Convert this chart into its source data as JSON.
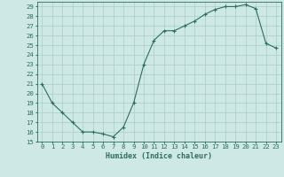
{
  "x": [
    0,
    1,
    2,
    3,
    4,
    5,
    6,
    7,
    8,
    9,
    10,
    11,
    12,
    13,
    14,
    15,
    16,
    17,
    18,
    19,
    20,
    21,
    22,
    23
  ],
  "y": [
    21,
    19,
    18,
    17,
    16,
    16,
    15.8,
    15.5,
    16.5,
    19,
    23,
    25.5,
    26.5,
    26.5,
    27,
    27.5,
    28.2,
    28.7,
    29,
    29,
    29.2,
    28.8,
    25.2,
    24.7
  ],
  "xlabel": "Humidex (Indice chaleur)",
  "xlim": [
    -0.5,
    23.5
  ],
  "ylim": [
    15,
    29.5
  ],
  "yticks": [
    15,
    16,
    17,
    18,
    19,
    20,
    21,
    22,
    23,
    24,
    25,
    26,
    27,
    28,
    29
  ],
  "xticks": [
    0,
    1,
    2,
    3,
    4,
    5,
    6,
    7,
    8,
    9,
    10,
    11,
    12,
    13,
    14,
    15,
    16,
    17,
    18,
    19,
    20,
    21,
    22,
    23
  ],
  "line_color": "#2d6e5e",
  "marker": "+",
  "bg_color": "#cde8e5",
  "grid_color": "#a8cdc9",
  "tick_label_color": "#2d6e5e",
  "axis_label_color": "#2d6e5e",
  "label_fontsize": 6.0,
  "tick_fontsize": 5.2
}
